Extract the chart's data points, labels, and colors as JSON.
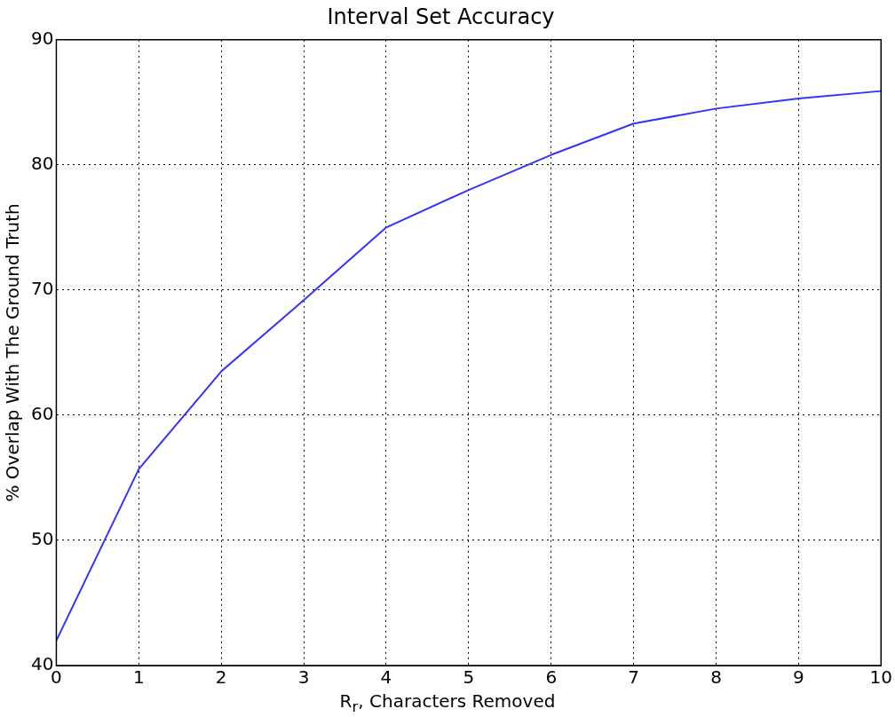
{
  "chart_data": {
    "type": "line",
    "title": "Interval Set Accuracy",
    "xlabel": "R$_{r}$, Characters Removed",
    "ylabel": "% Overlap With The Ground Truth",
    "x": [
      0,
      1,
      2,
      3,
      4,
      5,
      6,
      7,
      8,
      9,
      10
    ],
    "series": [
      {
        "color": "#3333ff",
        "values": [
          42,
          55.7,
          63.5,
          69.2,
          75,
          78,
          80.8,
          83.3,
          84.5,
          85.3,
          85.9
        ]
      }
    ],
    "xlim": [
      0,
      10
    ],
    "ylim": [
      40,
      90
    ],
    "xticks": [
      0,
      1,
      2,
      3,
      4,
      5,
      6,
      7,
      8,
      9,
      10
    ],
    "yticks": [
      40,
      50,
      60,
      70,
      80,
      90
    ],
    "grid": true
  }
}
